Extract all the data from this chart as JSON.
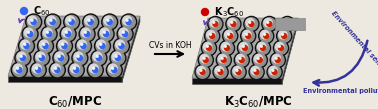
{
  "bg_color": "#ede8e0",
  "left_label": "C$_{60}$/MPC",
  "right_label": "K$_3$C$_{60}$/MPC",
  "arrow_label": "CVs in KOH",
  "legend_left_dot_color": "#3366ee",
  "legend_left_text": " C$_{60}$",
  "legend_right_dot_color": "#cc0000",
  "legend_right_text": " K$_3$C$_{60}$",
  "arc_label_top": "Environmental sensing platform",
  "arc_label_bottom": "Environmental pollutants sensors",
  "text_color": "#333399",
  "plate_top_color": "#a8a8a8",
  "plate_front_color": "#111111",
  "plate_side_color": "#2a2a2a",
  "ball_outer_color": "#111111",
  "ball_mid_color": "#909090",
  "ball_hi_color": "#d8d8d8",
  "ball_inner_left": "#3366ee",
  "ball_inner_right": "#cc2200",
  "gray_tab_color": "#999999"
}
